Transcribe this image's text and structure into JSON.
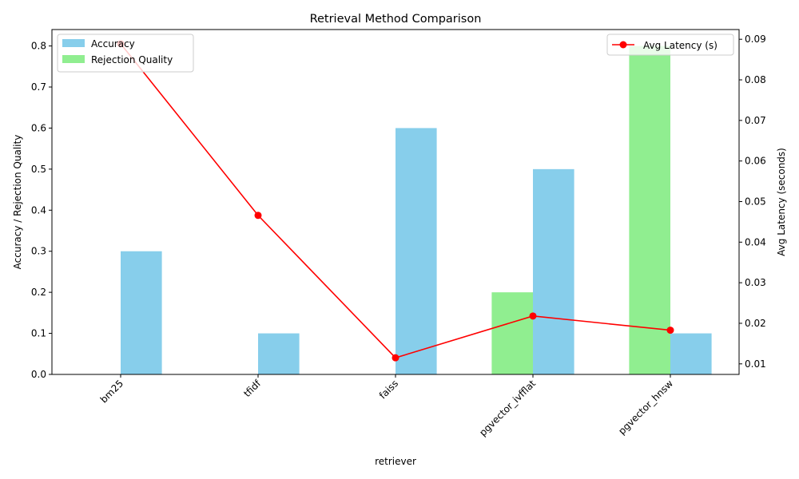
{
  "chart_data": {
    "type": "bar",
    "title": "Retrieval Method Comparison",
    "xlabel": "retriever",
    "ylabel": "Accuracy / Rejection Quality",
    "y2label": "Avg Latency (seconds)",
    "categories": [
      "bm25",
      "tfidf",
      "faiss",
      "pgvector_ivfflat",
      "pgvector_hnsw"
    ],
    "ylim": [
      0,
      0.84
    ],
    "yticks": [
      0.0,
      0.1,
      0.2,
      0.3,
      0.4,
      0.5,
      0.6,
      0.7,
      0.8
    ],
    "y2lim": [
      0.0074,
      0.0924
    ],
    "y2ticks": [
      0.01,
      0.02,
      0.03,
      0.04,
      0.05,
      0.06,
      0.07,
      0.08,
      0.09
    ],
    "series": [
      {
        "name": "Accuracy",
        "kind": "bar",
        "color": "#87ceeb",
        "values": [
          0.3,
          0.1,
          0.6,
          0.5,
          0.1
        ]
      },
      {
        "name": "Rejection Quality",
        "kind": "bar",
        "color": "#90ee90",
        "values": [
          0.0,
          0.0,
          0.0,
          0.2,
          0.8
        ]
      },
      {
        "name": "Avg Latency (s)",
        "kind": "line",
        "axis": "right",
        "color": "#ff0000",
        "values": [
          0.0889,
          0.0466,
          0.0115,
          0.0218,
          0.0183
        ]
      }
    ],
    "legend_left": "upper-left",
    "legend_right": "upper-right",
    "grid": false
  }
}
